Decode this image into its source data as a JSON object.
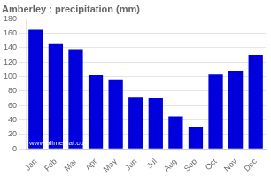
{
  "chart_data": {
    "type": "bar",
    "title": "Amberley : precipitation (mm)",
    "categories": [
      "Jan",
      "Feb",
      "Mar",
      "Apr",
      "May",
      "Jun",
      "Jul",
      "Aug",
      "Sep",
      "Oct",
      "Nov",
      "Dec"
    ],
    "values": [
      165,
      145,
      138,
      102,
      96,
      71,
      70,
      45,
      30,
      103,
      108,
      130
    ],
    "color": "#0000dd",
    "ylim": [
      0,
      180
    ],
    "yticks": [
      0,
      20,
      40,
      60,
      80,
      100,
      120,
      140,
      160,
      180
    ],
    "grid": true,
    "annotation": "www.allmetsat.com"
  }
}
